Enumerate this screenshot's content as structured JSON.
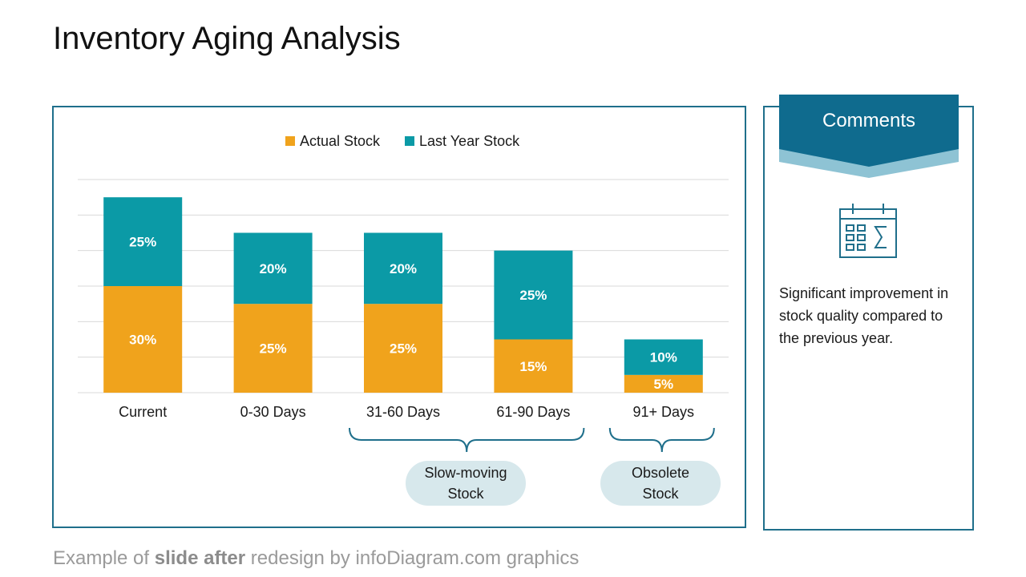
{
  "slide": {
    "title": "Inventory Aging Analysis"
  },
  "chart_data": {
    "type": "bar",
    "stacked": true,
    "categories": [
      "Current",
      "0-30 Days",
      "31-60 Days",
      "61-90 Days",
      "91+ Days"
    ],
    "series": [
      {
        "name": "Actual Stock",
        "color": "#f0a31c",
        "values": [
          30,
          25,
          25,
          15,
          5
        ],
        "labels": [
          "30%",
          "25%",
          "25%",
          "15%",
          "5%"
        ]
      },
      {
        "name": "Last Year Stock",
        "color": "#0b9aa6",
        "values": [
          25,
          20,
          20,
          25,
          10
        ],
        "labels": [
          "25%",
          "20%",
          "20%",
          "25%",
          "10%"
        ]
      }
    ],
    "ylim": [
      0,
      60
    ],
    "grid": true,
    "legend": "top-center"
  },
  "groups": [
    {
      "label": "Slow-moving Stock",
      "categories": [
        "31-60 Days",
        "61-90 Days"
      ]
    },
    {
      "label": "Obsolete Stock",
      "categories": [
        "91+ Days"
      ]
    }
  ],
  "comments": {
    "header": "Comments",
    "icon": "calendar-sum-icon",
    "text": "Significant improvement in stock quality compared to the previous year."
  },
  "footer": {
    "prefix": "Example of ",
    "bold": "slide after",
    "suffix": " redesign by infoDiagram.com graphics"
  },
  "colors": {
    "accent": "#1f6f8b",
    "ribbon": "#0f6b8e",
    "ribbon_shadow": "#8ec3d4",
    "pill": "#d7e8ec"
  }
}
